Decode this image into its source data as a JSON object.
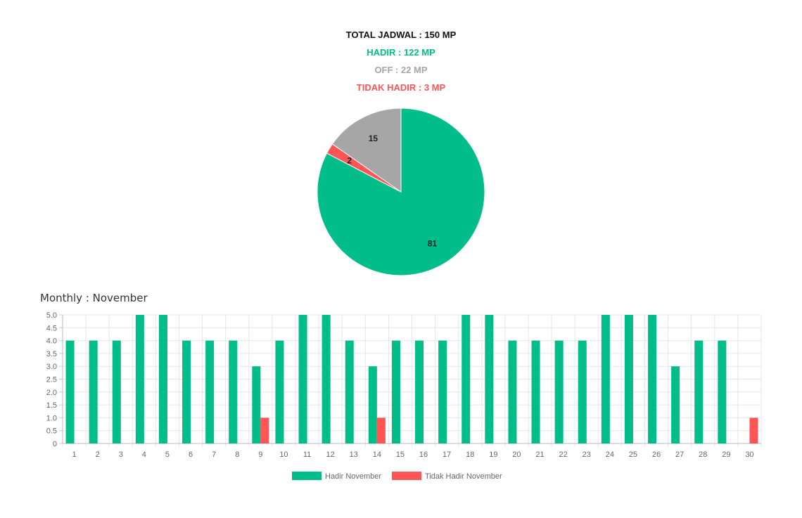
{
  "summary": {
    "total": "TOTAL JADWAL : 150 MP",
    "hadir": "HADIR : 122 MP",
    "off": "OFF : 22 MP",
    "tidak_hadir": "TIDAK HADIR : 3 MP"
  },
  "monthly_title": "Monthly : November",
  "colors": {
    "hadir": "#00bd8a",
    "tidak_hadir": "#ff5555",
    "off": "#a6a6a6"
  },
  "chart_data": [
    {
      "type": "pie",
      "slices": [
        {
          "value": 81,
          "color": "#00bd8a"
        },
        {
          "value": 2,
          "color": "#ff5555"
        },
        {
          "value": 15,
          "color": "#a6a6a6"
        }
      ],
      "data_labels": [
        "81",
        "2",
        "15"
      ]
    },
    {
      "type": "bar",
      "categories": [
        "1",
        "2",
        "3",
        "4",
        "5",
        "6",
        "7",
        "8",
        "9",
        "10",
        "11",
        "12",
        "13",
        "14",
        "15",
        "16",
        "17",
        "18",
        "19",
        "20",
        "21",
        "22",
        "23",
        "24",
        "25",
        "26",
        "27",
        "28",
        "29",
        "30"
      ],
      "series": [
        {
          "name": "Hadir November",
          "color": "#00bd8a",
          "values": [
            4,
            4,
            4,
            5,
            5,
            4,
            4,
            4,
            3,
            4,
            5,
            5,
            4,
            3,
            4,
            4,
            4,
            5,
            5,
            4,
            4,
            4,
            4,
            5,
            5,
            5,
            3,
            4,
            4,
            0
          ]
        },
        {
          "name": "Tidak Hadir November",
          "color": "#ff5555",
          "values": [
            0,
            0,
            0,
            0,
            0,
            0,
            0,
            0,
            1,
            0,
            0,
            0,
            0,
            1,
            0,
            0,
            0,
            0,
            0,
            0,
            0,
            0,
            0,
            0,
            0,
            0,
            0,
            0,
            0,
            1
          ]
        }
      ],
      "ylim": [
        0,
        5
      ],
      "yticks": [
        "0",
        "0.5",
        "1.0",
        "1.5",
        "2.0",
        "2.5",
        "3.0",
        "3.5",
        "4.0",
        "4.5",
        "5.0"
      ],
      "grid": true,
      "legend": "bottom-center"
    }
  ]
}
